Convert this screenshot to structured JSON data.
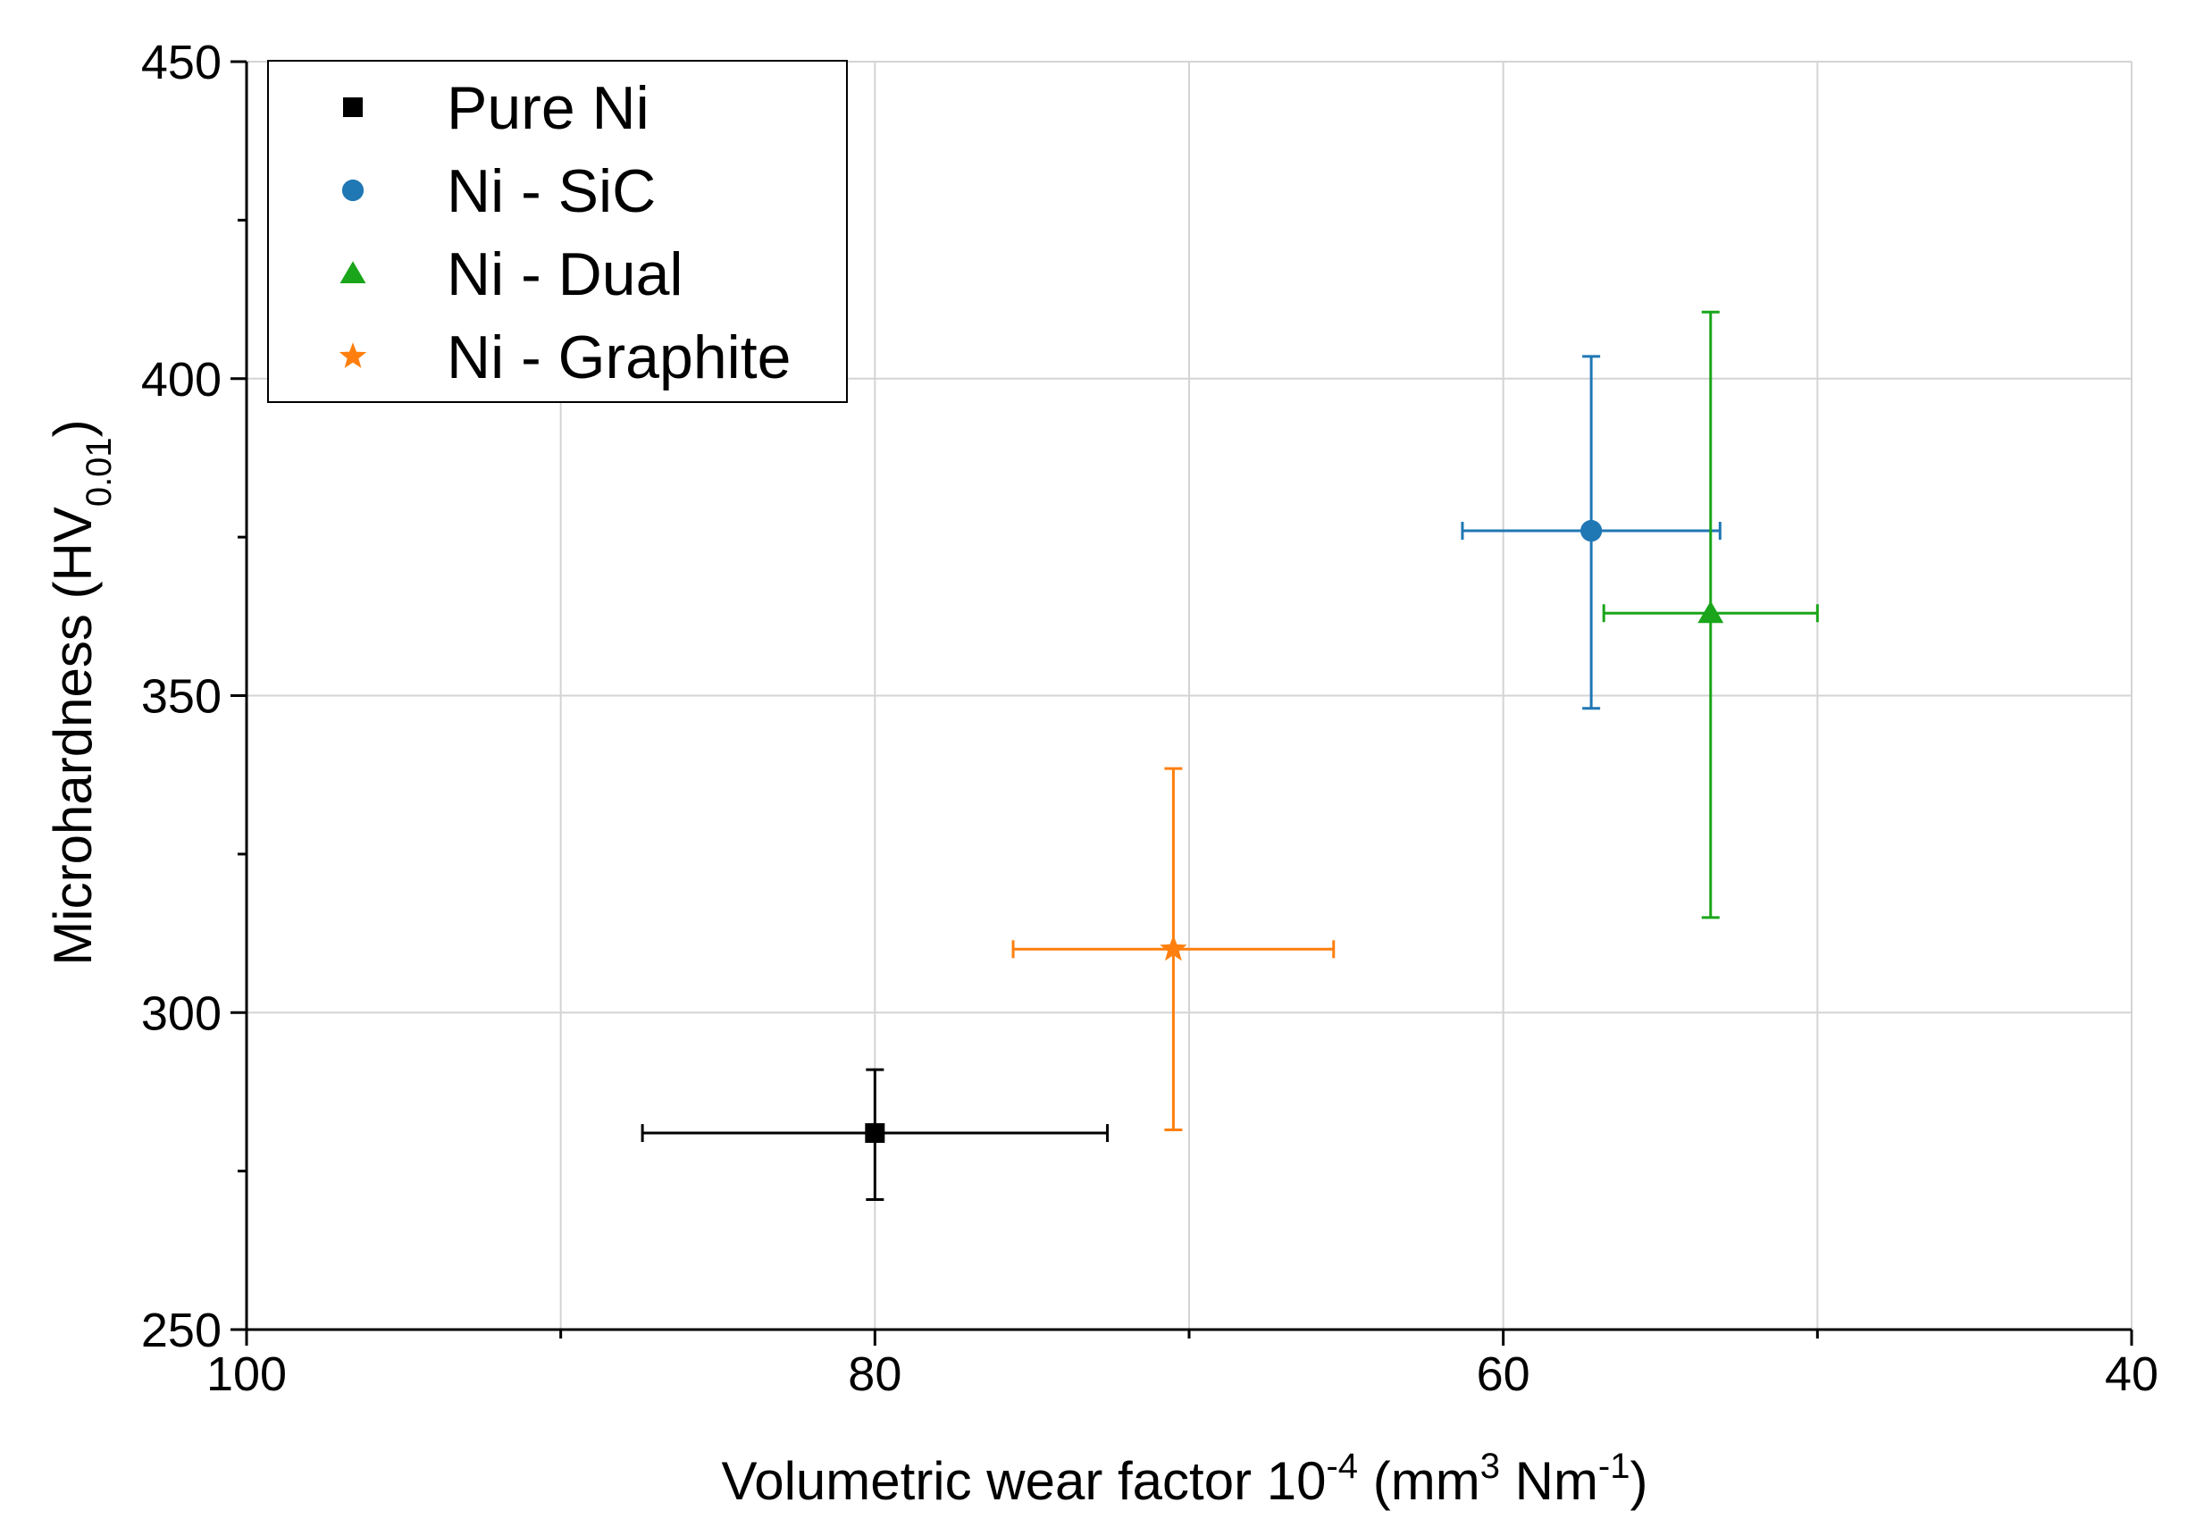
{
  "chart_data": {
    "type": "scatter",
    "title": "",
    "xlabel": {
      "main": "Volumetric wear factor 10",
      "exp": "-4",
      "unit_open": " (mm",
      "unit_exp1": "3",
      "unit_mid": " Nm",
      "unit_exp2": "-1",
      "unit_close": ")"
    },
    "ylabel": {
      "main": "Microhardness (HV",
      "sub": "0.01",
      "close": ")"
    },
    "xlim": [
      100,
      40
    ],
    "ylim": [
      250,
      450
    ],
    "x_ticks": [
      100,
      80,
      60,
      40
    ],
    "x_tick_labels": [
      "100",
      "80",
      "60",
      "40"
    ],
    "x_minor_ticks": [
      90,
      70,
      50
    ],
    "y_ticks": [
      250,
      300,
      350,
      400,
      450
    ],
    "y_tick_labels": [
      "250",
      "300",
      "350",
      "400",
      "450"
    ],
    "y_minor_ticks": [
      275,
      325,
      375,
      425
    ],
    "grid": true,
    "legend_position": "top-left",
    "series": [
      {
        "name": "Pure Ni",
        "marker": "square",
        "color": "#000000",
        "x": 80.0,
        "y": 281,
        "x_err_low": 87.4,
        "x_err_high": 72.6,
        "y_err_low": 270.5,
        "y_err_high": 291
      },
      {
        "name": "Ni - SiC",
        "marker": "circle",
        "color": "#1f77b4",
        "x": 57.2,
        "y": 376,
        "x_err_low": 61.3,
        "x_err_high": 53.1,
        "y_err_low": 348,
        "y_err_high": 403.5
      },
      {
        "name": "Ni - Dual",
        "marker": "triangle",
        "color": "#1aa51a",
        "x": 53.4,
        "y": 363,
        "x_err_low": 56.8,
        "x_err_high": 50.0,
        "y_err_low": 315,
        "y_err_high": 410.5
      },
      {
        "name": "Ni - Graphite",
        "marker": "star",
        "color": "#ff7f0e",
        "x": 70.5,
        "y": 310,
        "x_err_low": 75.6,
        "x_err_high": 65.4,
        "y_err_low": 281.5,
        "y_err_high": 338.5
      }
    ]
  }
}
